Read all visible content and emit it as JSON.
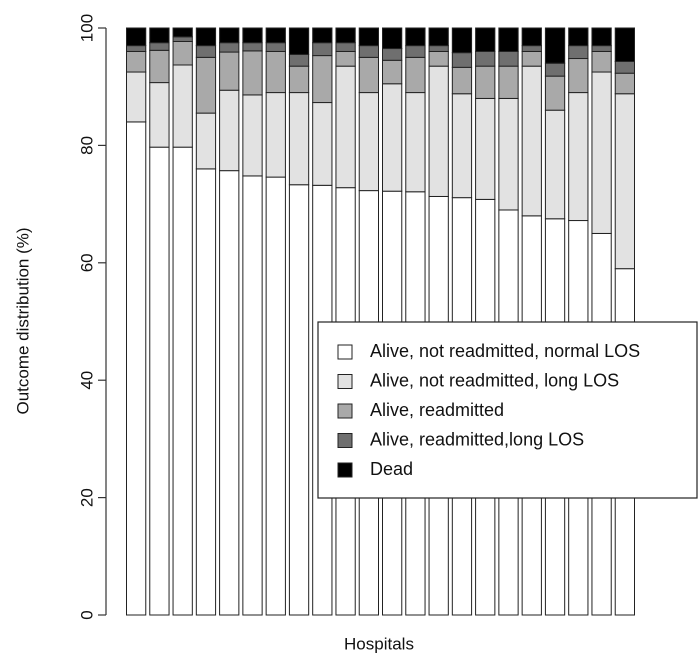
{
  "chart_data": {
    "type": "stacked-bar",
    "x_label": "Hospitals",
    "y_label": "Outcome distribution (%)",
    "categories": [
      null,
      null,
      null,
      null,
      null,
      null,
      null,
      null,
      null,
      null,
      null,
      null,
      null,
      null,
      null,
      null,
      null,
      null,
      null,
      null,
      null,
      null
    ],
    "ylim": [
      0,
      100
    ],
    "yticks": [
      0,
      20,
      40,
      60,
      80,
      100
    ],
    "grid": false,
    "legend_position": "right",
    "series": [
      {
        "name": "Alive, not readmitted, normal LOS",
        "color": "#ffffff",
        "values": [
          84,
          79.7,
          79.7,
          76,
          75.7,
          74.8,
          74.6,
          73.3,
          73.2,
          72.8,
          72.3,
          72.2,
          72.1,
          71.3,
          71.1,
          70.8,
          69,
          68,
          67.5,
          67.2,
          65,
          59
        ]
      },
      {
        "name": "Alive, not readmitted, long LOS",
        "color": "#e2e2e2",
        "values": [
          8.5,
          11,
          14,
          9.5,
          13.7,
          13.8,
          14.4,
          15.7,
          14.1,
          20.7,
          16.7,
          18.3,
          16.9,
          22.2,
          17.7,
          17.2,
          19,
          25.5,
          18.5,
          21.8,
          27.5,
          29.8
        ]
      },
      {
        "name": "Alive, readmitted",
        "color": "#a9a9a9",
        "values": [
          3.5,
          5.5,
          4,
          9.5,
          6.5,
          7.5,
          7,
          4.5,
          8,
          2.5,
          6,
          4,
          6,
          2.5,
          4.5,
          5.5,
          5.5,
          2.5,
          5.8,
          5.8,
          3.5,
          3.5
        ]
      },
      {
        "name": "Alive, readmitted,long LOS",
        "color": "#6f6f6f",
        "values": [
          1,
          1.3,
          0.8,
          2,
          1.6,
          1.4,
          1.5,
          2,
          2.2,
          1.5,
          2,
          2,
          2,
          1,
          2.5,
          2.5,
          2.5,
          1,
          2.2,
          2.2,
          1,
          2
        ]
      },
      {
        "name": "Dead",
        "color": "#000000",
        "values": [
          3,
          2.5,
          1.5,
          3,
          2.5,
          2.5,
          2.5,
          4.5,
          2.5,
          2.5,
          3,
          3.5,
          3,
          3,
          4.2,
          4,
          4,
          3,
          6,
          3,
          3,
          5.7
        ]
      }
    ]
  }
}
